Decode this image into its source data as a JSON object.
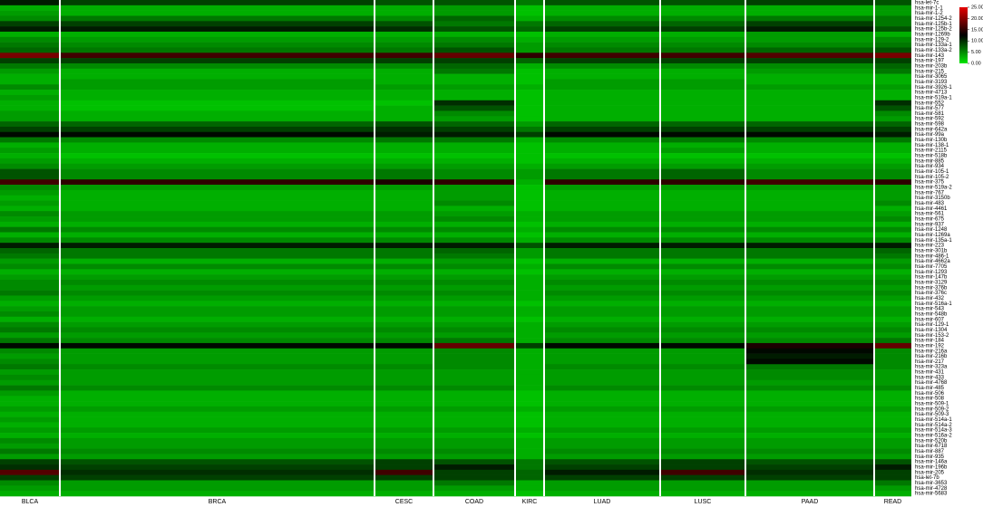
{
  "chart_data": {
    "type": "heatmap",
    "categories": [
      "BLCA",
      "BRCA",
      "CESC",
      "COAD",
      "KIRC",
      "LUAD",
      "LUSC",
      "PAAD",
      "READ"
    ],
    "rows": [
      "hsa-let-7c",
      "hsa-mir-1-1",
      "hsa-mir-1-2",
      "hsa-mir-1254-2",
      "hsa-mir-125b-1",
      "hsa-mir-125b-2",
      "hsa-mir-1269b",
      "hsa-mir-129-2",
      "hsa-mir-133a-1",
      "hsa-mir-133a-2",
      "hsa-mir-143",
      "hsa-mir-197",
      "hsa-mir-203b",
      "hsa-mir-215",
      "hsa-mir-3065",
      "hsa-mir-3193",
      "hsa-mir-3926-1",
      "hsa-mir-4713",
      "hsa-mir-519a-1",
      "hsa-mir-552",
      "hsa-mir-577",
      "hsa-mir-581",
      "hsa-mir-592",
      "hsa-mir-598",
      "hsa-mir-642a",
      "hsa-mir-99a",
      "hsa-mir-130b",
      "hsa-mir-138-1",
      "hsa-mir-2115",
      "hsa-mir-518b",
      "hsa-mir-885",
      "hsa-mir-934",
      "hsa-mir-105-1",
      "hsa-mir-105-2",
      "hsa-mir-375",
      "hsa-mir-519a-2",
      "hsa-mir-767",
      "hsa-mir-3150b",
      "hsa-mir-483",
      "hsa-mir-4461",
      "hsa-mir-561",
      "hsa-mir-675",
      "hsa-mir-937",
      "hsa-mir-1248",
      "hsa-mir-1269a",
      "hsa-mir-135a-1",
      "hsa-mir-223",
      "hsa-mir-301b",
      "hsa-mir-486-1",
      "hsa-mir-4662a",
      "hsa-mir-7705",
      "hsa-mir-1293",
      "hsa-mir-147b",
      "hsa-mir-3129",
      "hsa-mir-376b",
      "hsa-mir-376c",
      "hsa-mir-432",
      "hsa-mir-516a-1",
      "hsa-mir-543",
      "hsa-mir-548b",
      "hsa-mir-607",
      "hsa-mir-129-1",
      "hsa-mir-1304",
      "hsa-mir-153-2",
      "hsa-mir-184",
      "hsa-mir-192",
      "hsa-mir-216a",
      "hsa-mir-216b",
      "hsa-mir-217",
      "hsa-mir-323a",
      "hsa-mir-431",
      "hsa-mir-433",
      "hsa-mir-4768",
      "hsa-mir-485",
      "hsa-mir-506",
      "hsa-mir-508",
      "hsa-mir-509-1",
      "hsa-mir-509-2",
      "hsa-mir-509-3",
      "hsa-mir-514a-1",
      "hsa-mir-514a-2",
      "hsa-mir-514a-3",
      "hsa-mir-516a-2",
      "hsa-mir-520b",
      "hsa-mir-6718",
      "hsa-mir-887",
      "hsa-mir-935",
      "hsa-mir-146a",
      "hsa-mir-196b",
      "hsa-mir-205",
      "hsa-let-7b",
      "hsa-mir-3653",
      "hsa-mir-4728",
      "hsa-mir-5683"
    ],
    "values": [
      [
        11,
        9,
        8,
        8,
        6,
        8,
        8,
        9,
        8
      ],
      [
        3,
        3,
        3,
        4,
        2,
        3,
        3,
        3,
        4
      ],
      [
        4,
        3,
        3,
        4,
        2,
        3,
        3,
        3,
        4
      ],
      [
        5,
        6,
        5,
        7,
        3,
        5,
        5,
        6,
        6
      ],
      [
        9,
        9,
        8,
        6,
        6,
        7,
        7,
        9,
        6
      ],
      [
        11,
        11,
        10,
        8,
        7,
        9,
        9,
        11,
        8
      ],
      [
        3,
        3,
        3,
        3,
        2,
        3,
        3,
        4,
        3
      ],
      [
        5,
        4,
        4,
        5,
        3,
        4,
        4,
        4,
        5
      ],
      [
        6,
        5,
        5,
        6,
        4,
        5,
        5,
        5,
        6
      ],
      [
        7,
        6,
        6,
        8,
        4,
        6,
        6,
        7,
        8
      ],
      [
        19,
        16,
        16,
        18,
        15,
        16,
        16,
        17,
        19
      ],
      [
        9,
        9,
        9,
        9,
        7,
        9,
        9,
        9,
        9
      ],
      [
        6,
        5,
        5,
        7,
        3,
        5,
        5,
        5,
        7
      ],
      [
        4,
        3,
        3,
        6,
        2,
        3,
        3,
        4,
        6
      ],
      [
        3,
        3,
        3,
        3,
        2,
        3,
        3,
        3,
        3
      ],
      [
        3,
        4,
        3,
        3,
        2,
        4,
        4,
        3,
        3
      ],
      [
        5,
        4,
        4,
        4,
        3,
        4,
        4,
        4,
        4
      ],
      [
        3,
        3,
        3,
        3,
        2,
        3,
        3,
        3,
        3
      ],
      [
        4,
        3,
        3,
        3,
        2,
        3,
        3,
        3,
        3
      ],
      [
        3,
        2,
        2,
        10,
        2,
        3,
        3,
        3,
        10
      ],
      [
        3,
        2,
        3,
        8,
        2,
        3,
        3,
        3,
        8
      ],
      [
        4,
        3,
        3,
        5,
        2,
        3,
        3,
        3,
        5
      ],
      [
        4,
        3,
        3,
        4,
        2,
        3,
        3,
        3,
        4
      ],
      [
        7,
        7,
        8,
        7,
        4,
        7,
        7,
        7,
        7
      ],
      [
        9,
        9,
        10,
        9,
        6,
        9,
        9,
        9,
        9
      ],
      [
        12,
        12,
        11,
        11,
        9,
        12,
        12,
        12,
        11
      ],
      [
        6,
        5,
        6,
        6,
        3,
        5,
        6,
        5,
        6
      ],
      [
        3,
        3,
        3,
        3,
        2,
        3,
        3,
        3,
        3
      ],
      [
        4,
        3,
        3,
        3,
        2,
        3,
        4,
        3,
        3
      ],
      [
        3,
        2,
        2,
        2,
        2,
        2,
        2,
        2,
        2
      ],
      [
        4,
        3,
        3,
        3,
        2,
        3,
        3,
        3,
        3
      ],
      [
        5,
        4,
        4,
        4,
        3,
        4,
        4,
        4,
        4
      ],
      [
        8,
        5,
        6,
        5,
        4,
        6,
        7,
        5,
        5
      ],
      [
        8,
        5,
        6,
        5,
        4,
        6,
        7,
        5,
        5
      ],
      [
        16,
        15,
        14,
        15,
        3,
        15,
        15,
        16,
        15
      ],
      [
        5,
        4,
        4,
        4,
        2,
        4,
        4,
        4,
        4
      ],
      [
        4,
        3,
        3,
        4,
        2,
        3,
        3,
        3,
        4
      ],
      [
        3,
        3,
        3,
        4,
        2,
        3,
        3,
        3,
        4
      ],
      [
        4,
        3,
        3,
        5,
        2,
        3,
        3,
        3,
        5
      ],
      [
        3,
        3,
        3,
        3,
        2,
        3,
        3,
        3,
        3
      ],
      [
        5,
        4,
        4,
        4,
        3,
        4,
        4,
        4,
        4
      ],
      [
        4,
        4,
        4,
        5,
        3,
        4,
        4,
        4,
        5
      ],
      [
        3,
        3,
        3,
        3,
        2,
        3,
        3,
        3,
        3
      ],
      [
        6,
        5,
        5,
        5,
        3,
        5,
        5,
        5,
        5
      ],
      [
        3,
        3,
        3,
        3,
        2,
        3,
        3,
        3,
        3
      ],
      [
        5,
        5,
        5,
        5,
        3,
        5,
        5,
        5,
        5
      ],
      [
        11,
        11,
        11,
        11,
        8,
        11,
        11,
        11,
        11
      ],
      [
        7,
        6,
        6,
        7,
        4,
        6,
        6,
        6,
        7
      ],
      [
        6,
        6,
        6,
        6,
        4,
        6,
        6,
        6,
        6
      ],
      [
        4,
        3,
        3,
        4,
        2,
        3,
        3,
        3,
        4
      ],
      [
        5,
        5,
        5,
        5,
        3,
        5,
        5,
        5,
        5
      ],
      [
        3,
        3,
        3,
        3,
        2,
        3,
        3,
        3,
        3
      ],
      [
        4,
        4,
        4,
        4,
        3,
        4,
        4,
        4,
        4
      ],
      [
        5,
        5,
        5,
        5,
        3,
        5,
        5,
        5,
        5
      ],
      [
        5,
        4,
        4,
        4,
        3,
        4,
        4,
        4,
        4
      ],
      [
        6,
        5,
        5,
        5,
        3,
        5,
        5,
        5,
        5
      ],
      [
        4,
        4,
        4,
        4,
        3,
        4,
        4,
        4,
        4
      ],
      [
        3,
        3,
        3,
        3,
        2,
        3,
        3,
        3,
        3
      ],
      [
        4,
        4,
        4,
        4,
        3,
        4,
        4,
        4,
        4
      ],
      [
        5,
        4,
        4,
        4,
        3,
        4,
        4,
        4,
        4
      ],
      [
        3,
        3,
        3,
        3,
        2,
        3,
        3,
        3,
        3
      ],
      [
        5,
        4,
        4,
        4,
        3,
        4,
        4,
        4,
        4
      ],
      [
        6,
        5,
        5,
        5,
        3,
        5,
        5,
        5,
        5
      ],
      [
        4,
        4,
        4,
        4,
        3,
        4,
        4,
        4,
        4
      ],
      [
        6,
        5,
        5,
        6,
        3,
        5,
        5,
        5,
        6
      ],
      [
        12,
        12,
        12,
        18,
        9,
        12,
        12,
        14,
        18
      ],
      [
        5,
        4,
        4,
        5,
        3,
        4,
        4,
        12,
        5
      ],
      [
        4,
        4,
        4,
        5,
        3,
        4,
        4,
        11,
        5
      ],
      [
        5,
        4,
        4,
        5,
        3,
        4,
        4,
        12,
        5
      ],
      [
        6,
        5,
        5,
        5,
        3,
        5,
        5,
        6,
        5
      ],
      [
        4,
        4,
        4,
        4,
        3,
        4,
        4,
        5,
        4
      ],
      [
        5,
        4,
        4,
        4,
        3,
        4,
        4,
        5,
        4
      ],
      [
        4,
        4,
        4,
        4,
        3,
        4,
        4,
        4,
        4
      ],
      [
        6,
        5,
        5,
        5,
        3,
        5,
        5,
        5,
        5
      ],
      [
        4,
        3,
        3,
        3,
        2,
        3,
        3,
        3,
        3
      ],
      [
        3,
        3,
        3,
        3,
        2,
        3,
        3,
        3,
        3
      ],
      [
        3,
        3,
        3,
        3,
        2,
        3,
        3,
        3,
        3
      ],
      [
        4,
        4,
        4,
        4,
        3,
        4,
        4,
        4,
        4
      ],
      [
        3,
        3,
        3,
        3,
        2,
        3,
        3,
        3,
        3
      ],
      [
        4,
        3,
        3,
        3,
        2,
        3,
        3,
        3,
        3
      ],
      [
        3,
        3,
        3,
        3,
        2,
        3,
        3,
        3,
        3
      ],
      [
        4,
        4,
        4,
        4,
        3,
        4,
        4,
        4,
        4
      ],
      [
        3,
        3,
        3,
        3,
        2,
        3,
        3,
        3,
        3
      ],
      [
        5,
        4,
        4,
        4,
        3,
        4,
        4,
        4,
        4
      ],
      [
        4,
        4,
        4,
        4,
        3,
        4,
        4,
        4,
        4
      ],
      [
        6,
        5,
        5,
        5,
        3,
        5,
        5,
        5,
        5
      ],
      [
        4,
        4,
        4,
        4,
        3,
        4,
        4,
        4,
        4
      ],
      [
        9,
        8,
        9,
        8,
        6,
        8,
        9,
        8,
        8
      ],
      [
        10,
        9,
        9,
        11,
        6,
        9,
        9,
        9,
        11
      ],
      [
        17,
        10,
        16,
        9,
        7,
        11,
        16,
        10,
        9
      ],
      [
        9,
        9,
        9,
        9,
        7,
        9,
        9,
        9,
        9
      ],
      [
        5,
        4,
        4,
        6,
        3,
        4,
        4,
        4,
        6
      ],
      [
        4,
        4,
        4,
        4,
        3,
        4,
        4,
        4,
        4
      ],
      [
        3,
        3,
        3,
        3,
        2,
        3,
        3,
        3,
        3
      ]
    ],
    "colors": [
      "#00e600",
      "#000000",
      "#e60000"
    ],
    "clim": [
      0,
      25
    ],
    "cticks": [
      {
        "value": 0,
        "label": "0.00"
      },
      {
        "value": 5,
        "label": "5.00"
      },
      {
        "value": 10,
        "label": "10.00"
      },
      {
        "value": 15,
        "label": "15.00"
      },
      {
        "value": 20,
        "label": "20.00"
      },
      {
        "value": 25,
        "label": "25.00"
      }
    ]
  }
}
